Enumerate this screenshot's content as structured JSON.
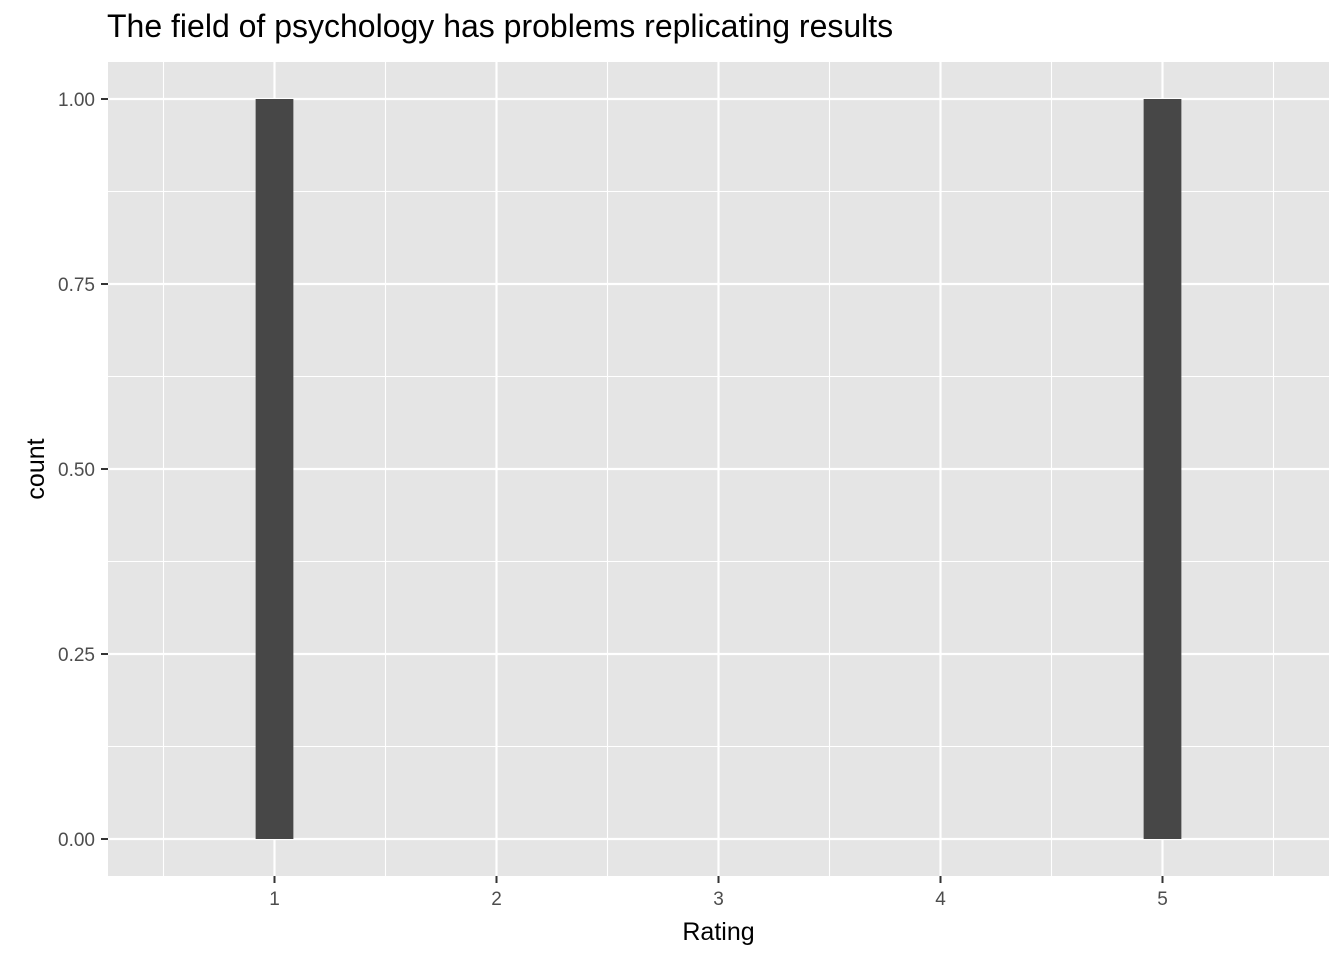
{
  "chart_data": {
    "type": "bar",
    "title": "The field of psychology has problems replicating results",
    "xlabel": "Rating",
    "ylabel": "count",
    "x_ticks": [
      "1",
      "2",
      "3",
      "4",
      "5"
    ],
    "y_ticks": [
      "0.00",
      "0.25",
      "0.50",
      "0.75",
      "1.00"
    ],
    "xlim": [
      0.25,
      5.75
    ],
    "ylim": [
      -0.05,
      1.05
    ],
    "grid": true,
    "bars": [
      {
        "x": 1,
        "value": 1
      },
      {
        "x": 2,
        "value": 0
      },
      {
        "x": 3,
        "value": 0
      },
      {
        "x": 4,
        "value": 0
      },
      {
        "x": 5,
        "value": 1
      }
    ],
    "colors": {
      "panel": "#e5e5e5",
      "grid": "#ffffff",
      "bar": "#474747",
      "tick_text": "#4d4d4d"
    }
  }
}
